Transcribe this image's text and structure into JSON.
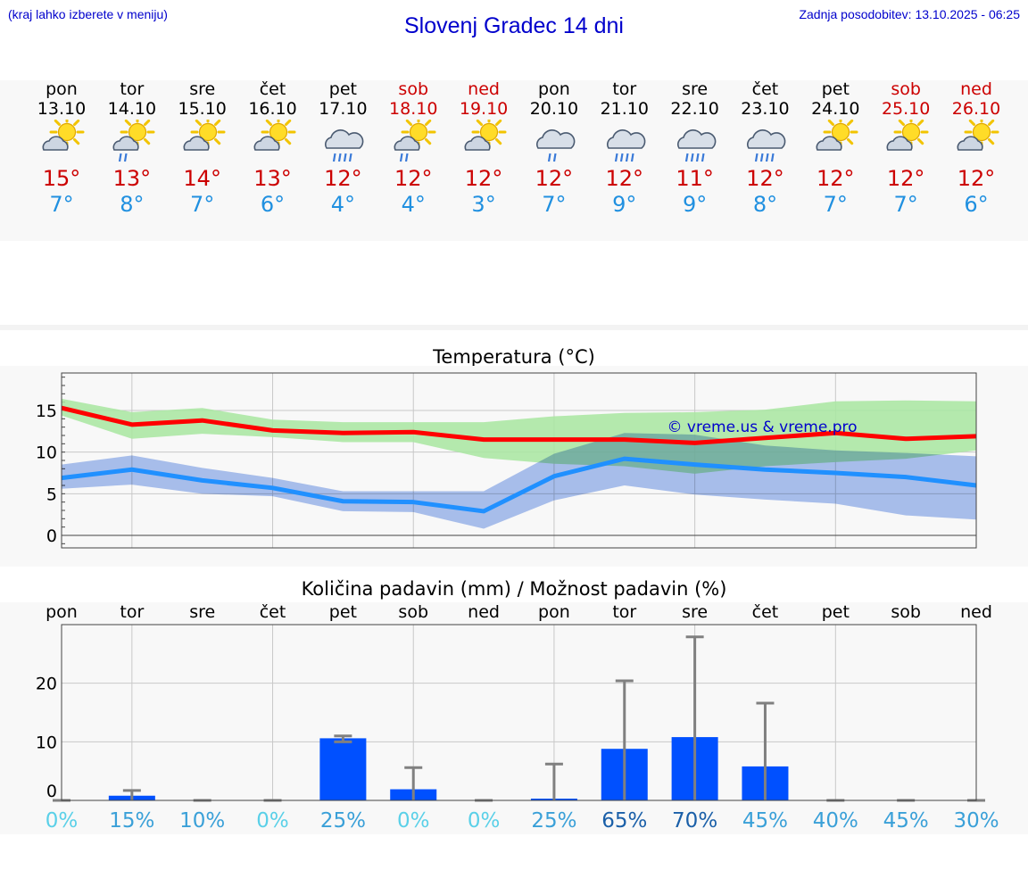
{
  "header": {
    "hint": "(kraj lahko izberete v meniju)",
    "title": "Slovenj Gradec 14 dni",
    "updated": "Zadnja posodobitev: 13.10.2025 - 06:25"
  },
  "days": [
    {
      "name": "pon",
      "date": "13.10",
      "weekend": false,
      "icon": "partly-cloudy-icon",
      "tmax": "15°",
      "tmin": "7°"
    },
    {
      "name": "tor",
      "date": "14.10",
      "weekend": false,
      "icon": "partly-cloudy-light-rain-icon",
      "tmax": "13°",
      "tmin": "8°"
    },
    {
      "name": "sre",
      "date": "15.10",
      "weekend": false,
      "icon": "partly-cloudy-icon",
      "tmax": "14°",
      "tmin": "7°"
    },
    {
      "name": "čet",
      "date": "16.10",
      "weekend": false,
      "icon": "partly-cloudy-icon",
      "tmax": "13°",
      "tmin": "6°"
    },
    {
      "name": "pet",
      "date": "17.10",
      "weekend": false,
      "icon": "cloudy-rain-icon",
      "tmax": "12°",
      "tmin": "4°"
    },
    {
      "name": "sob",
      "date": "18.10",
      "weekend": true,
      "icon": "partly-cloudy-light-rain-icon",
      "tmax": "12°",
      "tmin": "4°"
    },
    {
      "name": "ned",
      "date": "19.10",
      "weekend": true,
      "icon": "partly-cloudy-icon",
      "tmax": "12°",
      "tmin": "3°"
    },
    {
      "name": "pon",
      "date": "20.10",
      "weekend": false,
      "icon": "cloudy-light-rain-icon",
      "tmax": "12°",
      "tmin": "7°"
    },
    {
      "name": "tor",
      "date": "21.10",
      "weekend": false,
      "icon": "cloudy-rain-icon",
      "tmax": "12°",
      "tmin": "9°"
    },
    {
      "name": "sre",
      "date": "22.10",
      "weekend": false,
      "icon": "cloudy-rain-icon",
      "tmax": "11°",
      "tmin": "9°"
    },
    {
      "name": "čet",
      "date": "23.10",
      "weekend": false,
      "icon": "cloudy-rain-icon",
      "tmax": "12°",
      "tmin": "8°"
    },
    {
      "name": "pet",
      "date": "24.10",
      "weekend": false,
      "icon": "partly-cloudy-icon",
      "tmax": "12°",
      "tmin": "7°"
    },
    {
      "name": "sob",
      "date": "25.10",
      "weekend": true,
      "icon": "partly-cloudy-icon",
      "tmax": "12°",
      "tmin": "7°"
    },
    {
      "name": "ned",
      "date": "26.10",
      "weekend": true,
      "icon": "partly-cloudy-icon",
      "tmax": "12°",
      "tmin": "6°"
    }
  ],
  "colors": {
    "max": "#ff0000",
    "max_band": "#a8e6a0",
    "min": "#2090ff",
    "min_band": "#a8c0f0",
    "overlap": "#78c8a0",
    "precip_bar": "#0050ff",
    "error_bar": "#808080"
  },
  "chart_data": [
    {
      "type": "line",
      "title": "Temperatura (°C)",
      "watermark": "© vreme.us & vreme.pro",
      "x": [
        "13.10",
        "14.10",
        "15.10",
        "16.10",
        "17.10",
        "18.10",
        "19.10",
        "20.10",
        "21.10",
        "22.10",
        "23.10",
        "24.10",
        "25.10",
        "26.10"
      ],
      "ylim": [
        -1.5,
        19.5
      ],
      "yticks": [
        0,
        5,
        10,
        15
      ],
      "grid": true,
      "series": [
        {
          "role": "max",
          "values": [
            15.3,
            13.3,
            13.8,
            12.6,
            12.3,
            12.4,
            11.5,
            11.5,
            11.5,
            11.1,
            11.7,
            12.3,
            11.6,
            11.9
          ],
          "band_low": [
            14.4,
            11.6,
            12.2,
            11.8,
            11.2,
            11.2,
            9.3,
            8.6,
            8.3,
            7.4,
            8.3,
            8.8,
            9.2,
            10.2
          ],
          "band_high": [
            16.4,
            14.8,
            15.3,
            13.9,
            13.6,
            13.6,
            13.6,
            14.3,
            14.7,
            14.8,
            15.1,
            16.1,
            16.2,
            16.1
          ]
        },
        {
          "role": "min",
          "values": [
            6.9,
            7.9,
            6.6,
            5.7,
            4.1,
            4.0,
            2.9,
            7.1,
            9.2,
            8.5,
            7.9,
            7.5,
            7.0,
            6.0
          ],
          "band_low": [
            5.6,
            6.1,
            5.0,
            4.7,
            2.9,
            2.8,
            0.8,
            4.2,
            6.0,
            4.9,
            4.3,
            3.8,
            2.4,
            1.9
          ],
          "band_high": [
            8.5,
            9.6,
            8.1,
            6.9,
            5.3,
            5.3,
            5.3,
            9.8,
            12.3,
            12.1,
            10.8,
            10.2,
            9.9,
            9.5
          ]
        }
      ]
    },
    {
      "type": "bar",
      "title": "Količina padavin (mm) / Možnost padavin (%)",
      "categories": [
        "pon",
        "tor",
        "sre",
        "čet",
        "pet",
        "sob",
        "ned",
        "pon",
        "tor",
        "sre",
        "čet",
        "pet",
        "sob",
        "ned"
      ],
      "values": [
        0,
        0.8,
        0,
        0,
        10.6,
        1.9,
        0,
        0.3,
        8.8,
        10.8,
        5.8,
        0,
        0,
        0
      ],
      "error_high": [
        0,
        1.7,
        0,
        0,
        11.0,
        5.6,
        0,
        6.2,
        20.4,
        27.9,
        16.6,
        0,
        0,
        0
      ],
      "error_low": [
        0,
        0,
        0,
        0,
        10.0,
        0,
        0,
        0,
        0,
        0,
        0,
        0,
        0,
        0
      ],
      "ylim": [
        0,
        30
      ],
      "yticks": [
        0,
        10,
        20
      ],
      "probabilities": [
        "0%",
        "15%",
        "10%",
        "0%",
        "25%",
        "0%",
        "0%",
        "25%",
        "65%",
        "70%",
        "45%",
        "40%",
        "45%",
        "30%"
      ],
      "prob_values": [
        0,
        15,
        10,
        0,
        25,
        0,
        0,
        25,
        65,
        70,
        45,
        40,
        45,
        30
      ]
    }
  ]
}
